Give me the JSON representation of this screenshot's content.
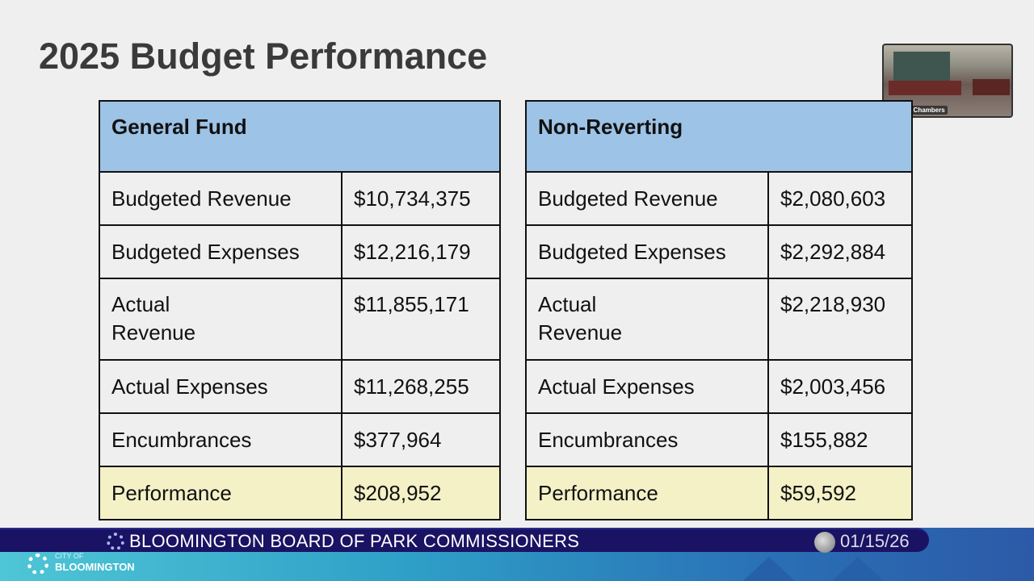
{
  "title": "2025 Budget Performance",
  "video": {
    "caption": "Council Chambers"
  },
  "tables": [
    {
      "header": "General Fund",
      "rows": [
        {
          "label": "Budgeted Revenue",
          "value": "$10,734,375"
        },
        {
          "label": "Budgeted Expenses",
          "value": "$12,216,179"
        },
        {
          "label": "Actual Revenue",
          "value": "$11,855,171"
        },
        {
          "label": "Actual Expenses",
          "value": "$11,268,255"
        },
        {
          "label": "Encumbrances",
          "value": "$377,964"
        },
        {
          "label": "Performance",
          "value": "$208,952"
        }
      ]
    },
    {
      "header": "Non-Reverting",
      "rows": [
        {
          "label": "Budgeted Revenue",
          "value": "$2,080,603"
        },
        {
          "label": "Budgeted Expenses",
          "value": "$2,292,884"
        },
        {
          "label": "Actual Revenue",
          "value": "$2,218,930"
        },
        {
          "label": "Actual Expenses",
          "value": "$2,003,456"
        },
        {
          "label": "Encumbrances",
          "value": "$155,882"
        },
        {
          "label": "Performance",
          "value": "$59,592"
        }
      ]
    }
  ],
  "banner": {
    "text": "BLOOMINGTON BOARD OF PARK COMMISSIONERS",
    "date": "01/15/26"
  },
  "logo": {
    "line1": "CITY OF",
    "line2": "BLOOMINGTON"
  },
  "colors": {
    "header": "#9dc3e6",
    "performance": "#f4f1c7",
    "banner": "#1a1363"
  }
}
